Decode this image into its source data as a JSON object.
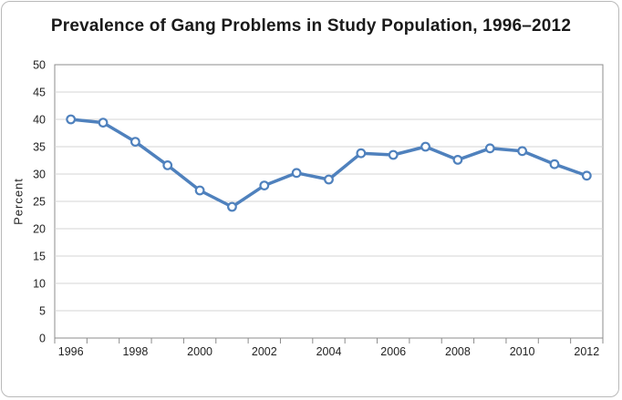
{
  "chart_data": {
    "type": "line",
    "title": "Prevalence of Gang Problems in Study Population, 1996–2012",
    "xlabel": "",
    "ylabel": "Percent",
    "x": [
      1996,
      1997,
      1998,
      1999,
      2000,
      2001,
      2002,
      2003,
      2004,
      2005,
      2006,
      2007,
      2008,
      2009,
      2010,
      2011,
      2012
    ],
    "xtick_labels": [
      "1996",
      "1998",
      "2000",
      "2002",
      "2004",
      "2006",
      "2008",
      "2010",
      "2012"
    ],
    "yticks": [
      0,
      5,
      10,
      15,
      20,
      25,
      30,
      35,
      40,
      45,
      50
    ],
    "ylim": [
      0,
      50
    ],
    "grid": true,
    "series": [
      {
        "values": [
          40.0,
          39.4,
          35.9,
          31.6,
          27.0,
          24.0,
          27.9,
          30.2,
          29.0,
          33.8,
          33.5,
          35.0,
          32.6,
          34.7,
          34.2,
          31.8,
          29.7
        ],
        "color": "#4f81bd"
      }
    ]
  }
}
